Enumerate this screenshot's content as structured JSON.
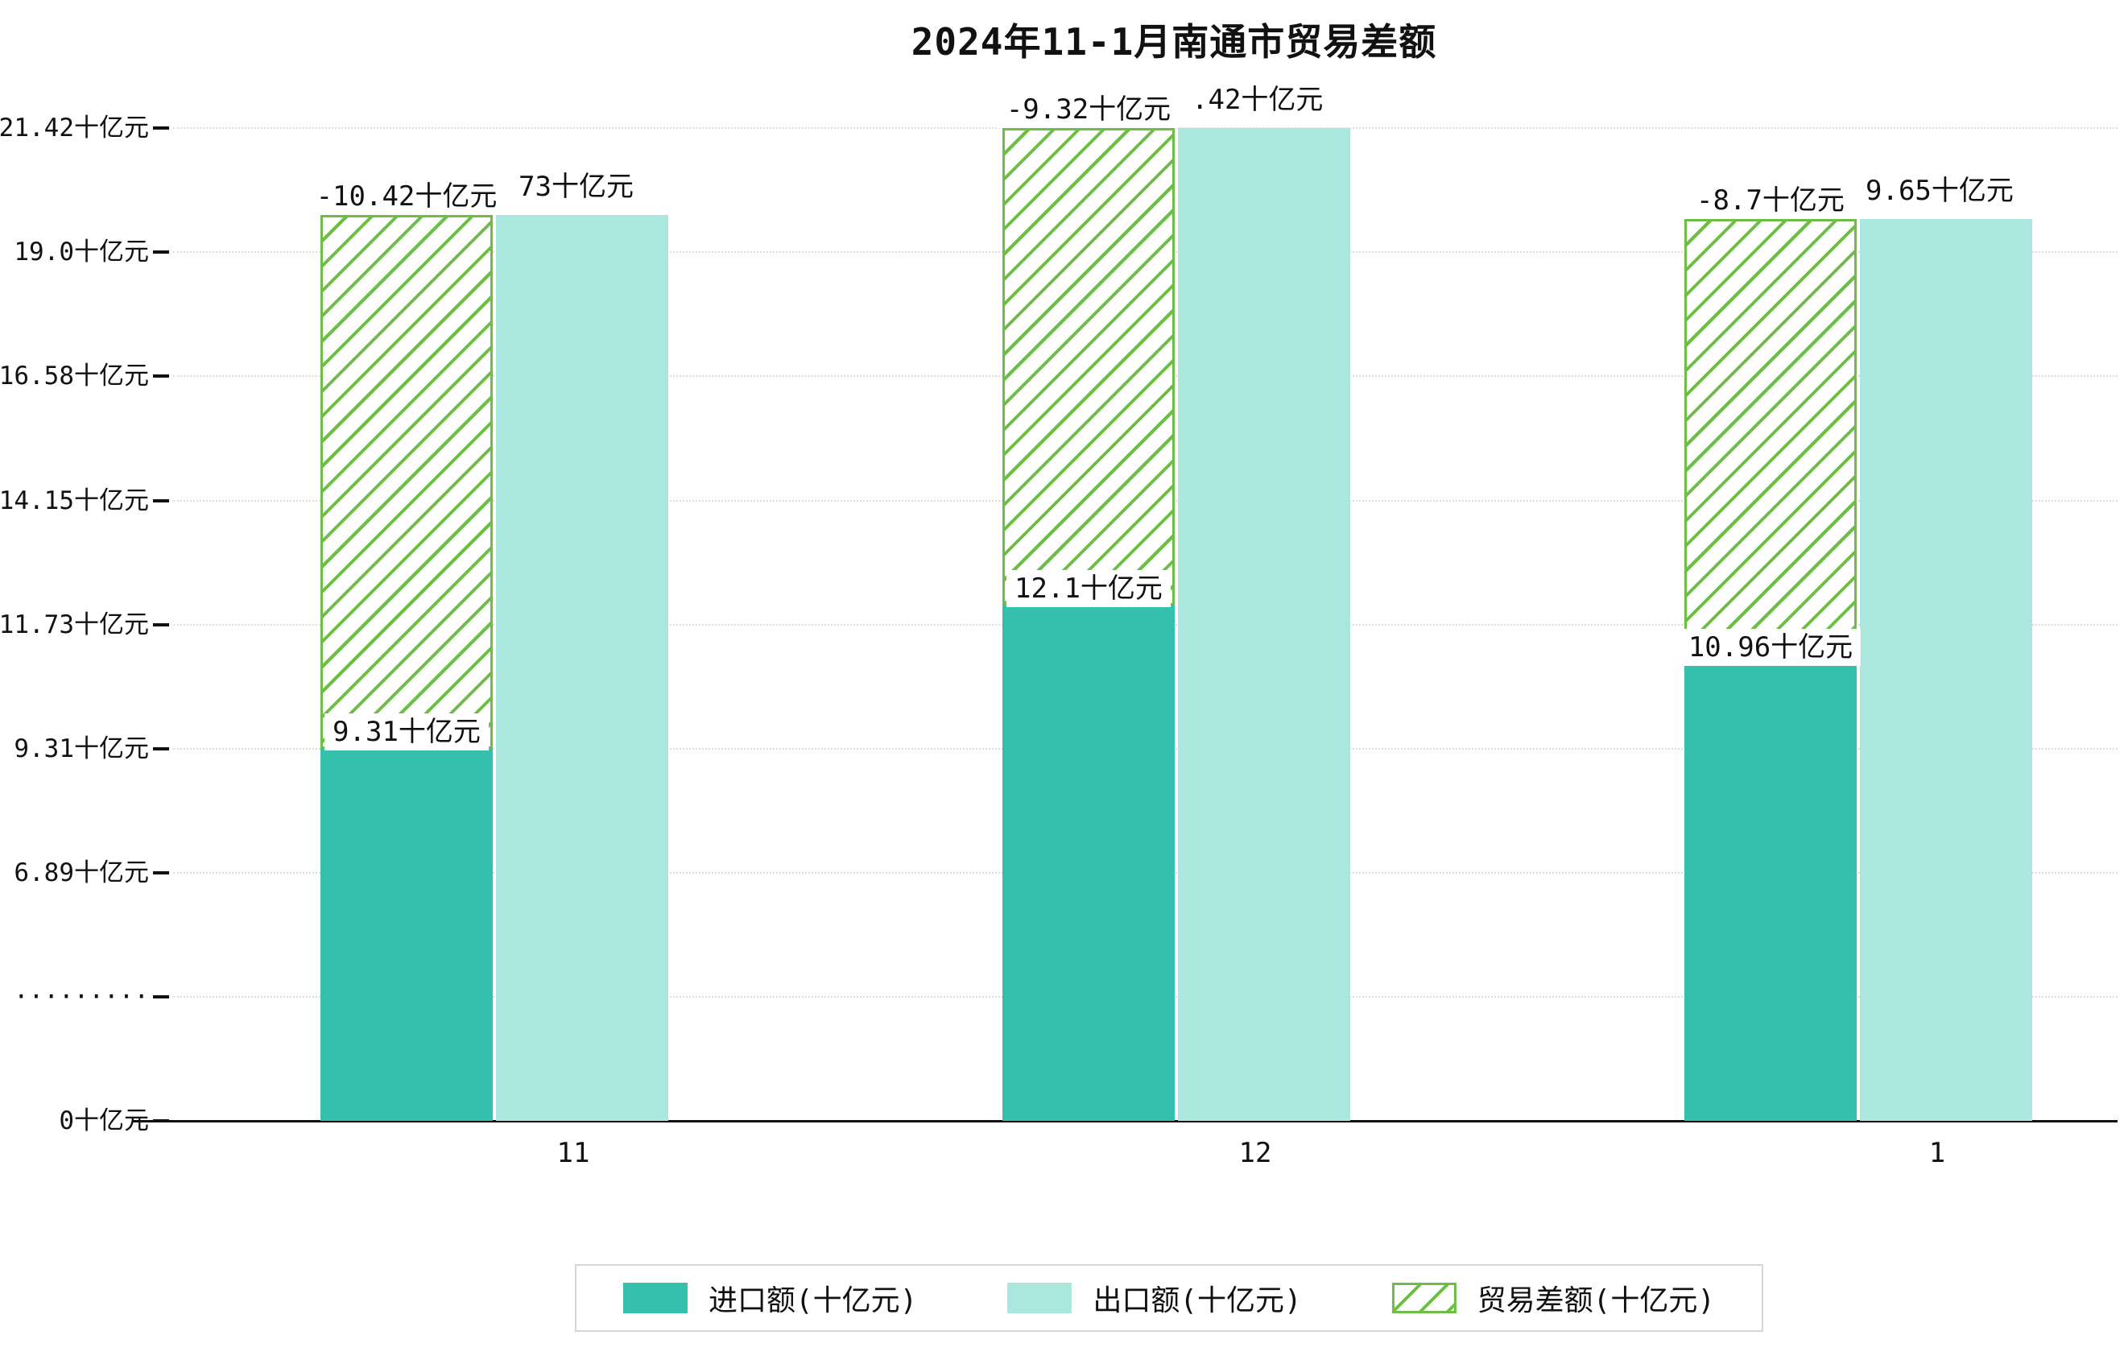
{
  "chart_data": {
    "type": "bar",
    "title": "2024年11-1月南通市贸易差额",
    "categories": [
      "11",
      "12",
      "1"
    ],
    "y_unit": "十亿元",
    "series": [
      {
        "name": "进口额(十亿元)",
        "values": [
          9.31,
          12.1,
          10.96
        ],
        "data_labels": [
          "9.31十亿元",
          "12.1十亿元",
          "10.96十亿元"
        ]
      },
      {
        "name": "出口额(十亿元)",
        "values": [
          19.73,
          21.42,
          19.65
        ],
        "data_labels_visible": [
          "73十亿元",
          ".42十亿元",
          "9.65十亿元"
        ]
      },
      {
        "name": "贸易差额(十亿元)",
        "values": [
          -10.42,
          -9.32,
          -8.7
        ],
        "data_labels": [
          "-10.42十亿元",
          "-9.32十亿元",
          "-8.7十亿元"
        ],
        "style": "hatched",
        "drawn_from_series": "进口额(十亿元)",
        "drawn_to_series": "出口额(十亿元)"
      }
    ],
    "y_ticks": [
      {
        "label": "21.42十亿元",
        "value": 21.42
      },
      {
        "label": "19.0十亿元",
        "value": 19.0
      },
      {
        "label": "16.58十亿元",
        "value": 16.58
      },
      {
        "label": "14.15十亿元",
        "value": 14.15
      },
      {
        "label": "11.73十亿元",
        "value": 11.73
      },
      {
        "label": "9.31十亿元",
        "value": 9.31
      },
      {
        "label": "6.89十亿元",
        "value": 6.89
      },
      {
        "label": "·········",
        "value": null
      },
      {
        "label": "0十亿元",
        "value": 0
      }
    ],
    "axis_break_between": [
      0,
      6.89
    ],
    "grid": "horizontal-dotted",
    "legend_position": "bottom-center",
    "ylim": [
      0,
      22.6
    ]
  },
  "legend": {
    "items": [
      {
        "label": "进口额(十亿元)",
        "swatch": "solid-import"
      },
      {
        "label": "出口额(十亿元)",
        "swatch": "solid-export"
      },
      {
        "label": "贸易差额(十亿元)",
        "swatch": "hatched-balance"
      }
    ]
  },
  "colors": {
    "import_bar": "#35c0ae",
    "export_bar": "#abe7df",
    "balance_hatch_green": "#6cbe45",
    "axis_line": "#111111",
    "gridline": "#dcdcdc",
    "label_box_bg": "#ffffff",
    "background": "#ffffff"
  }
}
